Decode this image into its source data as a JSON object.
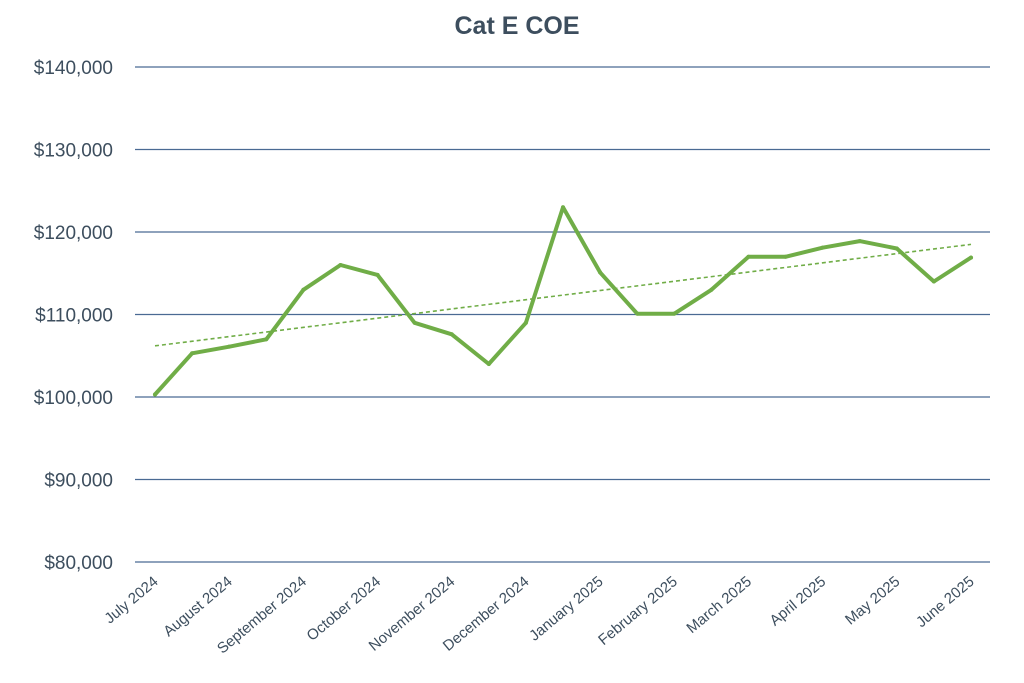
{
  "chart_data": {
    "type": "line",
    "title": "Cat E COE",
    "xlabel": "",
    "ylabel": "",
    "ylim": [
      80000,
      140000
    ],
    "ytick_values": [
      80000,
      90000,
      100000,
      110000,
      120000,
      130000,
      140000
    ],
    "ytick_labels": [
      "$80,000",
      "$90,000",
      "$100,000",
      "$110,000",
      "$120,000",
      "$130,000",
      "$140,000"
    ],
    "grid": true,
    "categories": [
      "July 2024",
      "August 2024",
      "September 2024",
      "October 2024",
      "November 2024",
      "December 2024",
      "January 2025",
      "February 2025",
      "March 2025",
      "April 2025",
      "May 2025",
      "June 2025"
    ],
    "x": [
      0,
      0.5,
      1,
      1.5,
      2,
      2.5,
      3,
      3.5,
      4,
      4.5,
      5,
      5.5,
      6,
      6.5,
      7,
      7.5,
      8,
      8.5,
      9,
      9.5,
      10,
      10.5,
      11
    ],
    "series": [
      {
        "name": "Cat E COE",
        "type": "line",
        "color": "#70ad47",
        "values": [
          100300,
          105300,
          106100,
          107000,
          113000,
          116000,
          114800,
          109000,
          107600,
          104000,
          109000,
          123000,
          115100,
          110100,
          110100,
          113000,
          117000,
          117000,
          118100,
          118900,
          118000,
          114000,
          116900
        ]
      },
      {
        "name": "Trendline",
        "type": "linear-trend",
        "color": "#70ad47",
        "values": [
          106200,
          118500
        ],
        "x": [
          0,
          11
        ]
      }
    ]
  }
}
